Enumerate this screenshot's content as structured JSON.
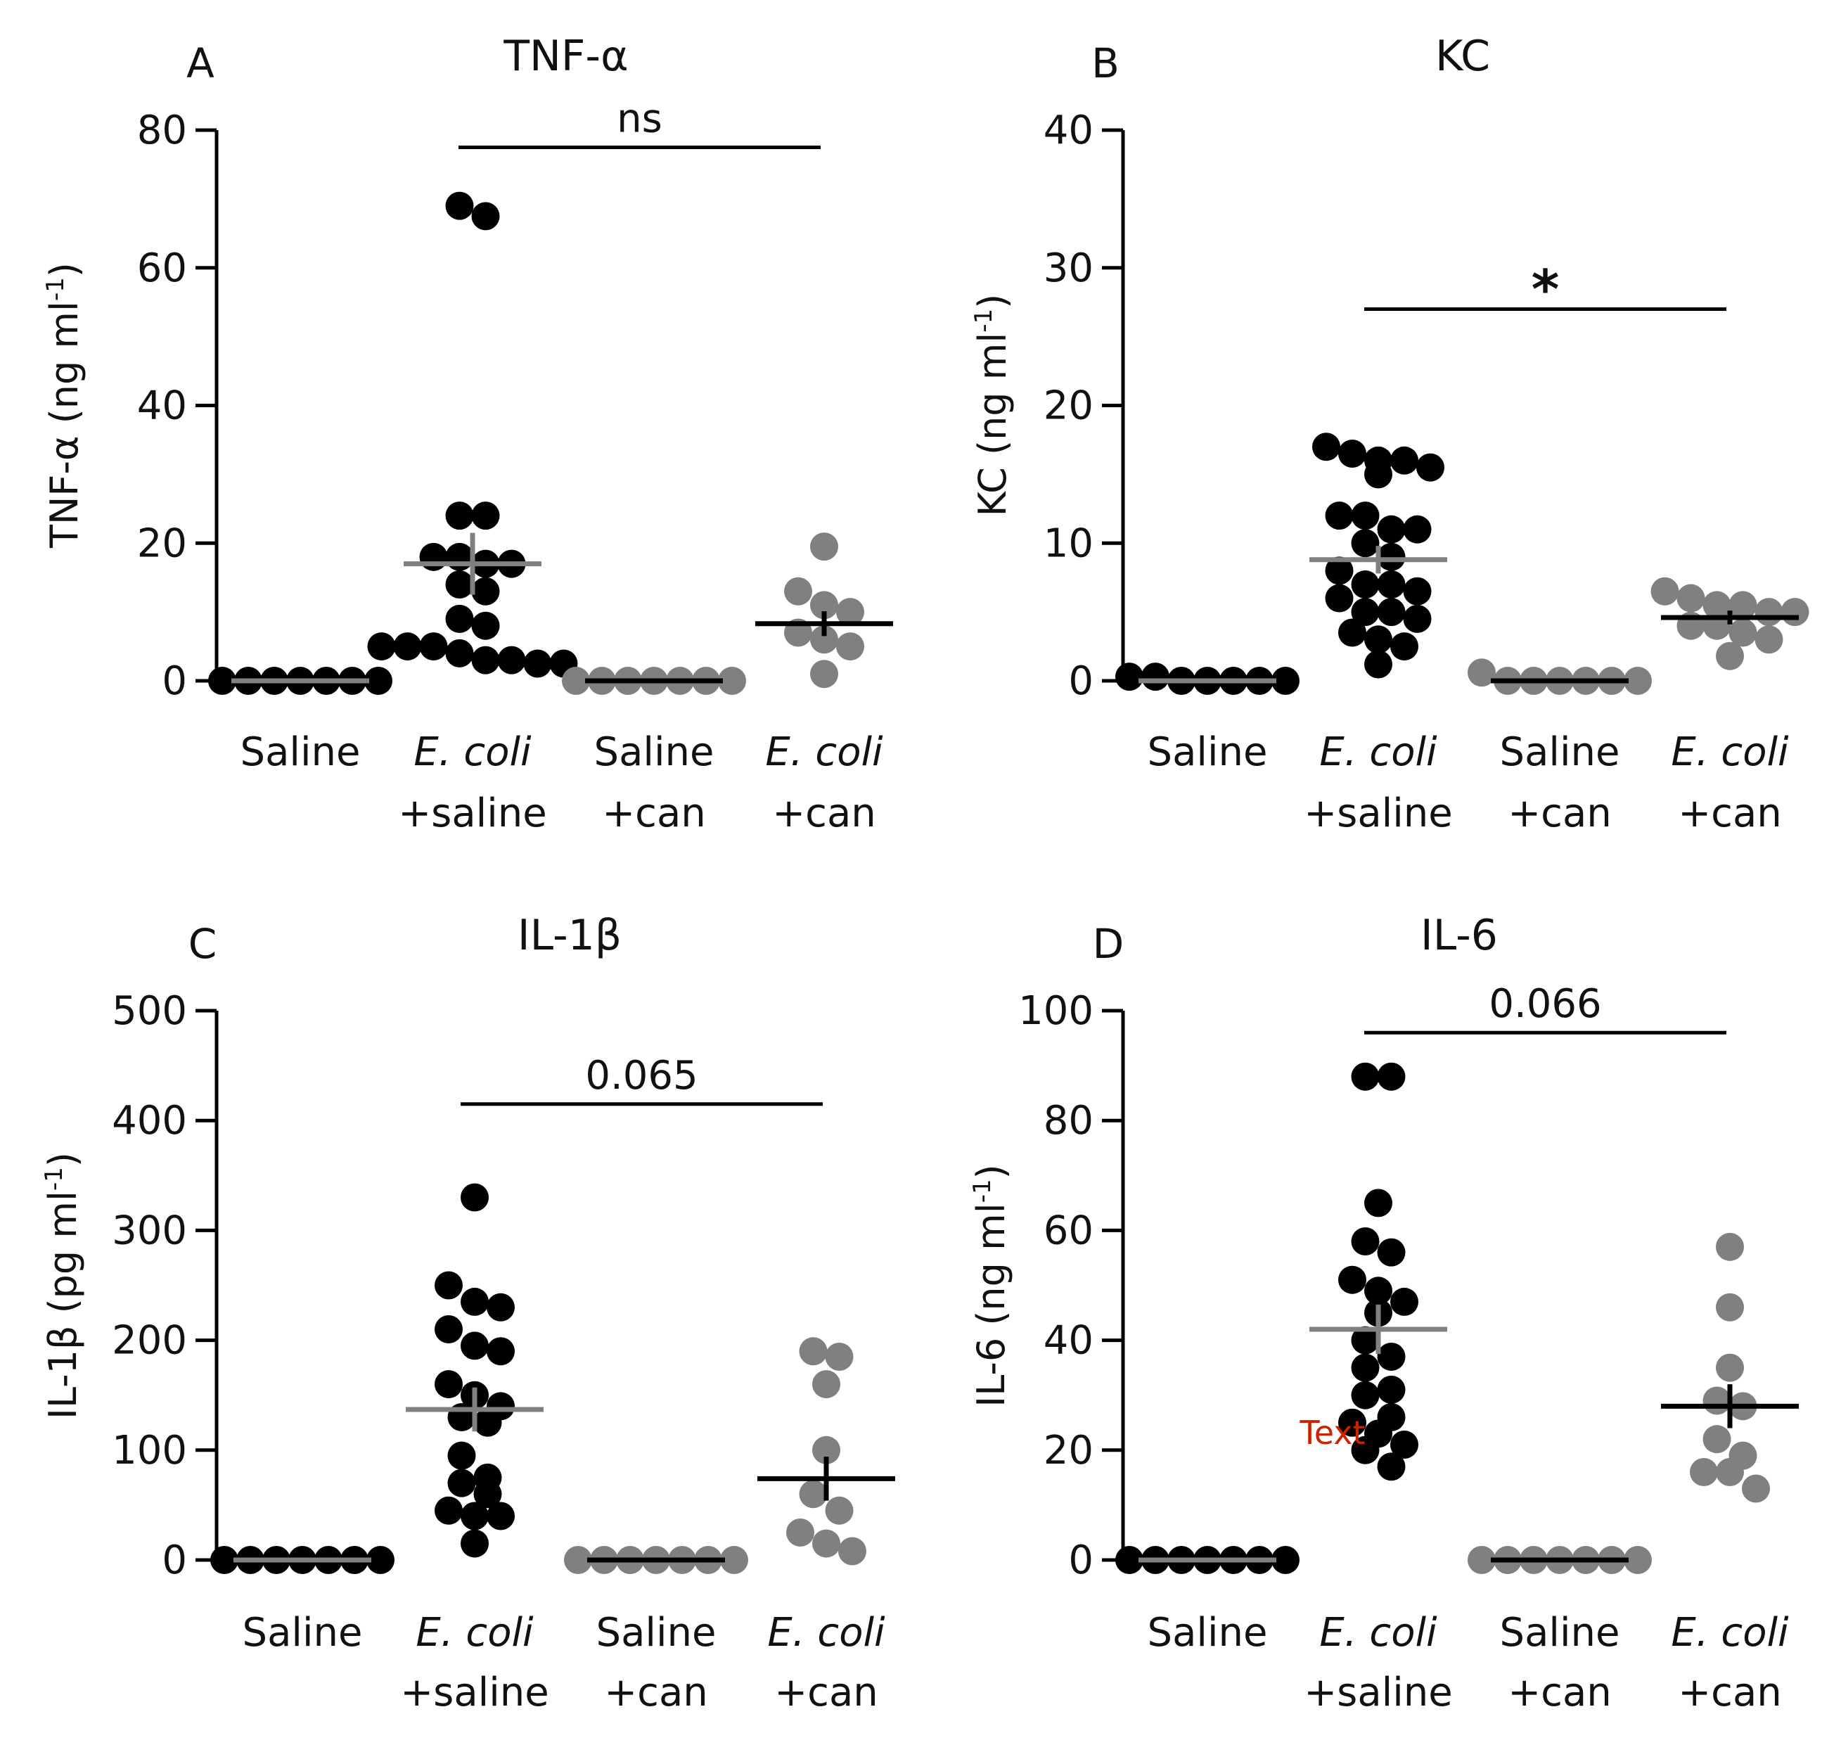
{
  "colors": {
    "black": "#000000",
    "grey": "#808080",
    "stray_text": "#cc2200"
  },
  "chart_data": [
    {
      "type": "scatter",
      "panel": "A",
      "title": "TNF-α",
      "ylabel": "TNF-α (ng ml",
      "ylabel_sup": "-1",
      "ylabel_close": ")",
      "ylim": [
        0,
        80
      ],
      "yticks": [
        "0",
        "20",
        "40",
        "60",
        "80"
      ],
      "groups": [
        {
          "line1": "Saline",
          "line2": "",
          "italic": false,
          "color": "black",
          "mean_color": "grey",
          "mean": 0,
          "sem": 0,
          "values": [
            0,
            0,
            0,
            0,
            0,
            0,
            0
          ]
        },
        {
          "line1": "E. coli",
          "line2": "+saline",
          "italic": true,
          "color": "black",
          "mean_color": "grey",
          "mean": 17,
          "sem": 4.5,
          "values": [
            69,
            67.5,
            24,
            24,
            18,
            18,
            17,
            17,
            14,
            13,
            9,
            8,
            5,
            5,
            5,
            4,
            3,
            3,
            2.5,
            2.5
          ]
        },
        {
          "line1": "Saline",
          "line2": "+can",
          "italic": false,
          "color": "grey",
          "mean_color": "black",
          "mean": 0,
          "sem": 0,
          "values": [
            0,
            0,
            0,
            0,
            0,
            0,
            0
          ]
        },
        {
          "line1": "E. coli",
          "line2": "+can",
          "italic": true,
          "color": "grey",
          "mean_color": "black",
          "mean": 8.3,
          "sem": 1.8,
          "values": [
            19.5,
            13,
            11,
            10,
            7,
            6,
            5,
            1
          ]
        }
      ],
      "significance": {
        "label": "ns",
        "from": 1,
        "to": 3,
        "y": 77.5
      }
    },
    {
      "type": "scatter",
      "panel": "B",
      "title": "KC",
      "ylabel": "KC (ng ml",
      "ylabel_sup": "-1",
      "ylabel_close": ")",
      "ylim": [
        0,
        40
      ],
      "yticks": [
        "0",
        "10",
        "20",
        "30",
        "40"
      ],
      "groups": [
        {
          "line1": "Saline",
          "line2": "",
          "italic": false,
          "color": "black",
          "mean_color": "grey",
          "mean": 0,
          "sem": 0,
          "values": [
            0.3,
            0.3,
            0,
            0,
            0,
            0,
            0
          ]
        },
        {
          "line1": "E. coli",
          "line2": "+saline",
          "italic": true,
          "color": "black",
          "mean_color": "grey",
          "mean": 8.8,
          "sem": 1.0,
          "values": [
            17,
            16.5,
            16,
            16,
            15.5,
            15,
            12,
            12,
            11,
            11,
            10,
            9,
            8,
            7,
            7,
            6.5,
            6,
            5,
            5,
            4.5,
            3.5,
            3,
            2.5,
            1.2
          ]
        },
        {
          "line1": "Saline",
          "line2": "+can",
          "italic": false,
          "color": "grey",
          "mean_color": "black",
          "mean": 0,
          "sem": 0,
          "values": [
            0.6,
            0,
            0,
            0,
            0,
            0,
            0
          ]
        },
        {
          "line1": "E. coli",
          "line2": "+can",
          "italic": true,
          "color": "grey",
          "mean_color": "black",
          "mean": 4.6,
          "sem": 0.5,
          "values": [
            6.5,
            6,
            5.5,
            5.5,
            5,
            5,
            4,
            4,
            3.5,
            3,
            1.8
          ]
        }
      ],
      "significance": {
        "label": "*",
        "from": 1,
        "to": 3,
        "y": 27
      }
    },
    {
      "type": "scatter",
      "panel": "C",
      "title": "IL-1β",
      "ylabel": "IL-1β (pg ml",
      "ylabel_sup": "-1",
      "ylabel_close": ")",
      "ylim": [
        0,
        500
      ],
      "yticks": [
        "0",
        "100",
        "200",
        "300",
        "400",
        "500"
      ],
      "groups": [
        {
          "line1": "Saline",
          "line2": "",
          "italic": false,
          "color": "black",
          "mean_color": "grey",
          "mean": 0,
          "sem": 0,
          "values": [
            0,
            0,
            0,
            0,
            0,
            0,
            0
          ]
        },
        {
          "line1": "E. coli",
          "line2": "+saline",
          "italic": true,
          "color": "black",
          "mean_color": "grey",
          "mean": 137,
          "sem": 20,
          "values": [
            330,
            250,
            235,
            230,
            210,
            195,
            190,
            160,
            150,
            140,
            130,
            125,
            95,
            75,
            70,
            60,
            45,
            40,
            40,
            15
          ]
        },
        {
          "line1": "Saline",
          "line2": "+can",
          "italic": false,
          "color": "grey",
          "mean_color": "black",
          "mean": 0,
          "sem": 0,
          "values": [
            0,
            0,
            0,
            0,
            0,
            0,
            0
          ]
        },
        {
          "line1": "E. coli",
          "line2": "+can",
          "italic": true,
          "color": "grey",
          "mean_color": "black",
          "mean": 74,
          "sem": 20,
          "values": [
            190,
            185,
            160,
            100,
            60,
            45,
            25,
            15,
            8
          ]
        }
      ],
      "significance": {
        "label": "0.065",
        "from": 1,
        "to": 3,
        "y": 415
      }
    },
    {
      "type": "scatter",
      "panel": "D",
      "title": "IL-6",
      "ylabel": "IL-6 (ng ml",
      "ylabel_sup": "-1",
      "ylabel_close": ")",
      "ylim": [
        0,
        100
      ],
      "yticks": [
        "0",
        "20",
        "40",
        "60",
        "80",
        "100"
      ],
      "groups": [
        {
          "line1": "Saline",
          "line2": "",
          "italic": false,
          "color": "black",
          "mean_color": "grey",
          "mean": 0,
          "sem": 0,
          "values": [
            0,
            0,
            0,
            0,
            0,
            0,
            0
          ]
        },
        {
          "line1": "E. coli",
          "line2": "+saline",
          "italic": true,
          "color": "black",
          "mean_color": "grey",
          "mean": 42,
          "sem": 4.5,
          "values": [
            88,
            88,
            65,
            58,
            56,
            51,
            49,
            47,
            45,
            40,
            37,
            35,
            31,
            30,
            26,
            25,
            23,
            21,
            20,
            17
          ]
        },
        {
          "line1": "Saline",
          "line2": "+can",
          "italic": false,
          "color": "grey",
          "mean_color": "black",
          "mean": 0,
          "sem": 0,
          "values": [
            0,
            0,
            0,
            0,
            0,
            0,
            0
          ]
        },
        {
          "line1": "E. coli",
          "line2": "+can",
          "italic": true,
          "color": "grey",
          "mean_color": "black",
          "mean": 28,
          "sem": 4,
          "values": [
            57,
            46,
            35,
            29,
            28,
            22,
            19,
            16,
            16,
            13
          ]
        }
      ],
      "significance": {
        "label": "0.066",
        "from": 1,
        "to": 3,
        "y": 96
      },
      "annotation": "Text"
    }
  ]
}
